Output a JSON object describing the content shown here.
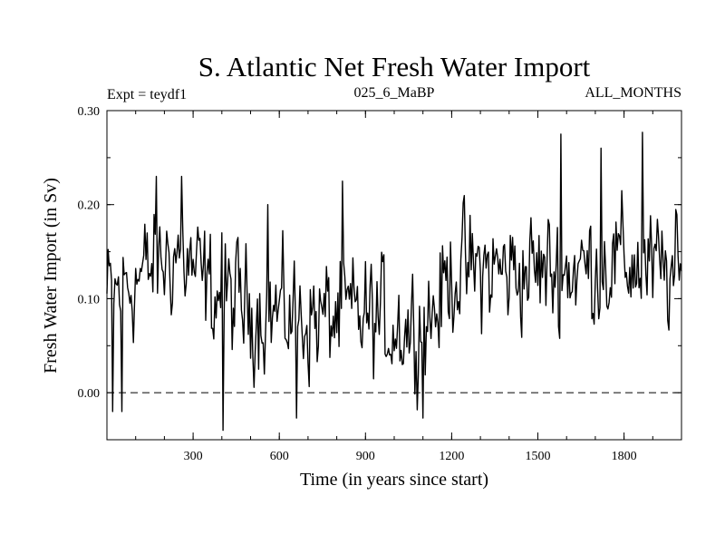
{
  "chart_data": {
    "type": "line",
    "title": "S. Atlantic Net Fresh Water Import",
    "subtitle_left": "Expt = teydf1",
    "subtitle_center": "025_6_MaBP",
    "subtitle_right": "ALL_MONTHS",
    "xlabel": "Time (in years since start)",
    "ylabel": "Fresh Water Import (in Sv)",
    "xlim": [
      0,
      2000
    ],
    "ylim": [
      -0.05,
      0.3
    ],
    "x_ticks": [
      300,
      600,
      900,
      1200,
      1500,
      1800
    ],
    "y_ticks": [
      0.0,
      0.1,
      0.2,
      0.3
    ],
    "x_tick_labels": [
      "300",
      "600",
      "900",
      "1200",
      "1500",
      "1800"
    ],
    "y_tick_labels": [
      "0.00",
      "0.10",
      "0.20",
      "0.30"
    ],
    "reference_line": {
      "y": 0.0,
      "style": "dashed"
    },
    "series": [
      {
        "name": "Net Fresh Water Import",
        "color": "#000000",
        "x_start": 0,
        "x_step": 4,
        "trend_knots": [
          [
            0,
            0.1
          ],
          [
            150,
            0.13
          ],
          [
            250,
            0.15
          ],
          [
            350,
            0.11
          ],
          [
            500,
            0.09
          ],
          [
            700,
            0.08
          ],
          [
            900,
            0.08
          ],
          [
            1050,
            0.07
          ],
          [
            1150,
            0.09
          ],
          [
            1200,
            0.13
          ],
          [
            1400,
            0.13
          ],
          [
            1600,
            0.13
          ],
          [
            1800,
            0.14
          ],
          [
            2000,
            0.12
          ]
        ],
        "noise_amplitude": 0.045,
        "extreme_points": [
          [
            20,
            -0.02
          ],
          [
            50,
            -0.02
          ],
          [
            170,
            0.23
          ],
          [
            260,
            0.23
          ],
          [
            400,
            0.17
          ],
          [
            405,
            -0.04
          ],
          [
            560,
            0.2
          ],
          [
            660,
            -0.027
          ],
          [
            820,
            0.225
          ],
          [
            1100,
            -0.027
          ],
          [
            1580,
            0.275
          ],
          [
            1720,
            0.26
          ],
          [
            1865,
            0.277
          ]
        ]
      }
    ]
  }
}
